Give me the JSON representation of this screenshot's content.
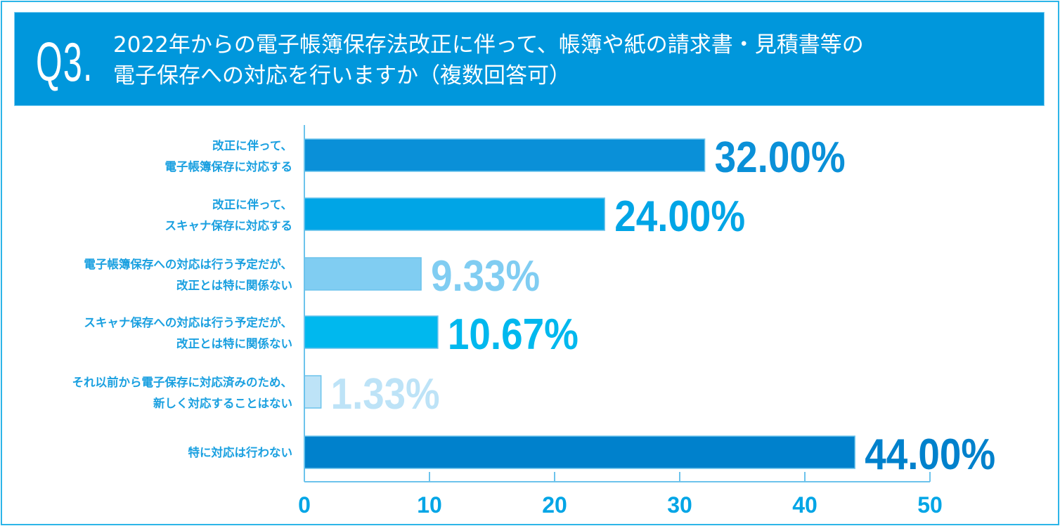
{
  "header": {
    "question_number": "Q3.",
    "question_lines": [
      "2022年からの電子帳簿保存法改正に伴って、帳簿や紙の請求書・見積書等の",
      "電子保存への対応を行いますか（複数回答可）"
    ]
  },
  "chart_data": {
    "type": "bar",
    "orientation": "horizontal",
    "categories": [
      [
        "改正に伴って、",
        "電子帳簿保存に対応する"
      ],
      [
        "改正に伴って、",
        "スキャナ保存に対応する"
      ],
      [
        "電子帳簿保存への対応は行う予定だが、",
        "改正とは特に関係ない"
      ],
      [
        "スキャナ保存への対応は行う予定だが、",
        "改正とは特に関係ない"
      ],
      [
        "それ以前から電子保存に対応済みのため、",
        "新しく対応することはない"
      ],
      [
        "特に対応は行わない"
      ]
    ],
    "values": [
      32.0,
      24.0,
      9.33,
      10.67,
      1.33,
      44.0
    ],
    "value_labels": [
      "32.00%",
      "24.00%",
      "9.33%",
      "10.67%",
      "1.33%",
      "44.00%"
    ],
    "colors": [
      "#0a90d8",
      "#00a5e6",
      "#80cdf2",
      "#00b8ee",
      "#bde3f7",
      "#0081cc"
    ],
    "xlim": [
      0,
      50
    ],
    "xticks": [
      "0",
      "10",
      "20",
      "30",
      "40",
      "50"
    ],
    "grid": false
  }
}
